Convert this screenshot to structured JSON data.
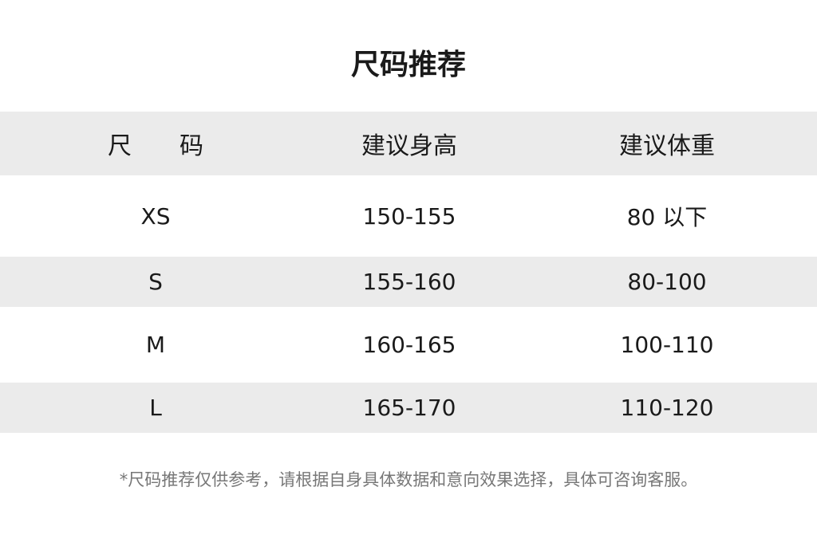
{
  "title": "尺码推荐",
  "headers": [
    "尺　　码",
    "建议身高",
    "建议体重"
  ],
  "rows": [
    [
      "XS",
      "150-155",
      "80 以下"
    ],
    [
      "S",
      "155-160",
      "80-100"
    ],
    [
      "M",
      "160-165",
      "100-110"
    ],
    [
      "L",
      "165-170",
      "110-120"
    ]
  ],
  "note": "*尺码推荐仅供参考，请根据自身具体数据和意向效果选择，具体可咨询客服。",
  "colors": {
    "band": "#ebebeb",
    "text": "#1a1a1a",
    "note": "#777777"
  }
}
